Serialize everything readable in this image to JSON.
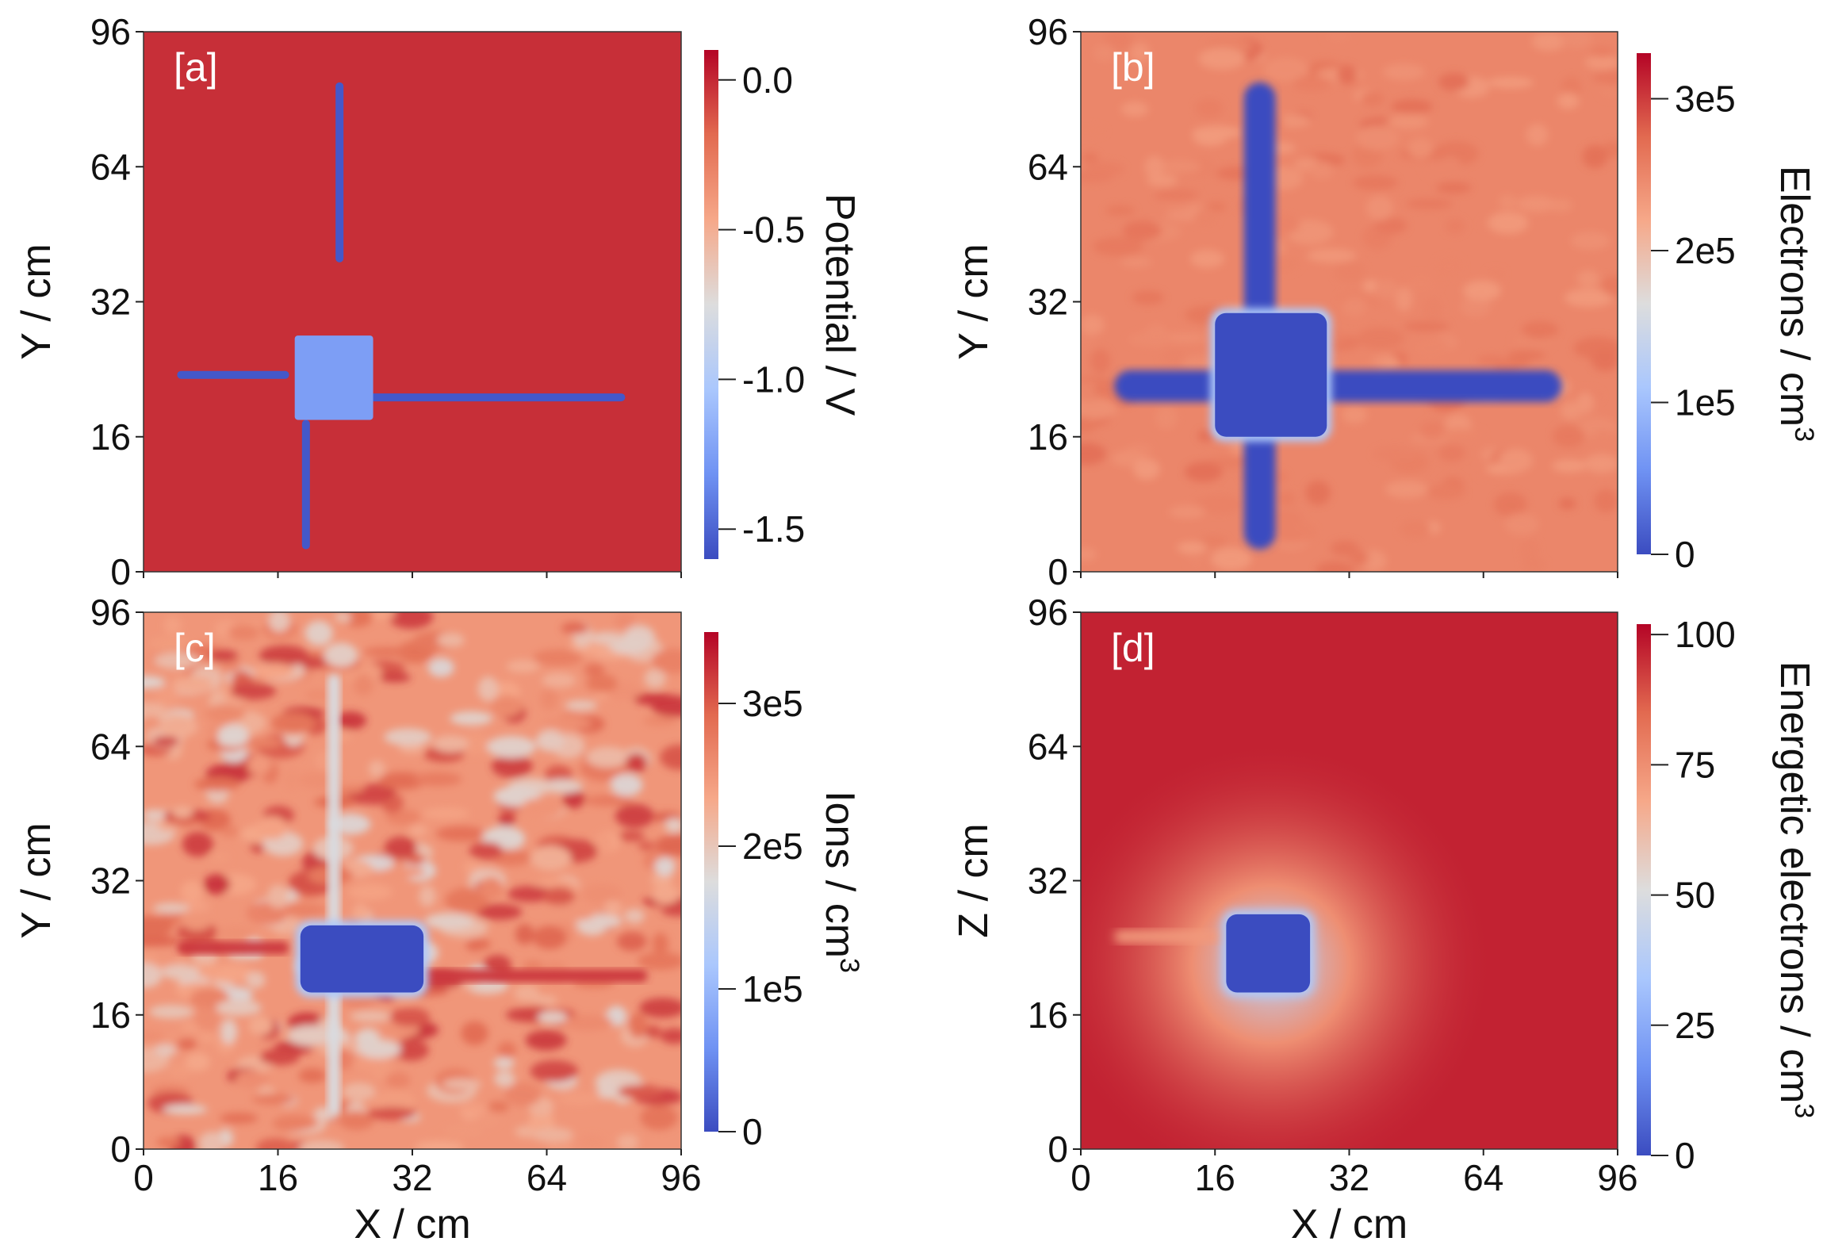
{
  "colors": {
    "cmap": [
      "#3b4cc0",
      "#6f92f3",
      "#aac7fd",
      "#dddddd",
      "#f6a889",
      "#e26a50",
      "#b40426"
    ]
  },
  "chart_data": [
    {
      "type": "heatmap",
      "tag": "[a]",
      "xlabel": "",
      "ylabel": "Y / cm",
      "x_ticks": [],
      "y_ticks": [
        "0",
        "16",
        "32",
        "64",
        "96"
      ],
      "colorbar": {
        "label": "Potential / V",
        "unit_sup": "",
        "range": [
          -1.6,
          0.1
        ],
        "ticks": [
          {
            "value": 0.0,
            "label": "0.0"
          },
          {
            "value": -0.5,
            "label": "-0.5"
          },
          {
            "value": -1.0,
            "label": "-1.0"
          },
          {
            "value": -1.5,
            "label": "-1.5"
          }
        ]
      },
      "background_value": -0.02,
      "features": [
        {
          "kind": "rod",
          "orientation": "horizontal",
          "from": 6,
          "to": 26,
          "at": 35,
          "value": -1.55
        },
        {
          "kind": "rod",
          "orientation": "horizontal",
          "from": 40,
          "to": 86,
          "at": 31,
          "value": -1.55
        },
        {
          "kind": "rod",
          "orientation": "vertical",
          "from": 55,
          "to": 87,
          "at": 35,
          "value": -1.55
        },
        {
          "kind": "rod",
          "orientation": "vertical",
          "from": 4,
          "to": 27,
          "at": 29,
          "value": -1.55
        },
        {
          "kind": "block",
          "x": [
            27,
            41
          ],
          "y": [
            27,
            42
          ],
          "value": -1.25
        }
      ]
    },
    {
      "type": "heatmap",
      "tag": "[b]",
      "xlabel": "",
      "ylabel": "Y / cm",
      "x_ticks": [],
      "y_ticks": [
        "0",
        "16",
        "32",
        "64",
        "96"
      ],
      "colorbar": {
        "label": "Electrons / cm",
        "unit_sup": "3",
        "range": [
          0,
          330000.0
        ],
        "ticks": [
          {
            "value": 300000,
            "label": "3e5"
          },
          {
            "value": 200000,
            "label": "2e5"
          },
          {
            "value": 100000,
            "label": "1e5"
          },
          {
            "value": 0,
            "label": "0"
          }
        ]
      },
      "background_value": 250000,
      "features": [
        {
          "kind": "rod",
          "orientation": "horizontal",
          "from": 6,
          "to": 86,
          "at": 33,
          "value": 0
        },
        {
          "kind": "rod",
          "orientation": "vertical",
          "from": 4,
          "to": 87,
          "at": 32,
          "value": 0
        },
        {
          "kind": "block",
          "x": [
            24,
            44
          ],
          "y": [
            24,
            46
          ],
          "value": 0
        }
      ]
    },
    {
      "type": "heatmap",
      "tag": "[c]",
      "xlabel": "X / cm",
      "ylabel": "Y / cm",
      "x_ticks": [
        "0",
        "16",
        "32",
        "64",
        "96"
      ],
      "y_ticks": [
        "0",
        "16",
        "32",
        "64",
        "96"
      ],
      "colorbar": {
        "label": "Ions / cm",
        "unit_sup": "3",
        "range": [
          0,
          350000.0
        ],
        "ticks": [
          {
            "value": 300000,
            "label": "3e5"
          },
          {
            "value": 200000,
            "label": "2e5"
          },
          {
            "value": 100000,
            "label": "1e5"
          },
          {
            "value": 0,
            "label": "0"
          }
        ]
      },
      "background_value": 250000,
      "features": [
        {
          "kind": "rod",
          "orientation": "horizontal",
          "from": 6,
          "to": 26,
          "at": 36,
          "value": 320000
        },
        {
          "kind": "rod",
          "orientation": "horizontal",
          "from": 48,
          "to": 90,
          "at": 31,
          "value": 320000
        },
        {
          "kind": "rod",
          "orientation": "vertical",
          "from": 6,
          "to": 85,
          "at": 34,
          "value": 170000
        },
        {
          "kind": "block",
          "x": [
            28,
            50
          ],
          "y": [
            28,
            40
          ],
          "value": 0
        }
      ]
    },
    {
      "type": "heatmap",
      "tag": "[d]",
      "xlabel": "X / cm",
      "ylabel": "Z / cm",
      "x_ticks": [
        "0",
        "16",
        "32",
        "64",
        "96"
      ],
      "y_ticks": [
        "0",
        "16",
        "32",
        "64",
        "96"
      ],
      "colorbar": {
        "label": "Energetic electrons / cm",
        "unit_sup": "3",
        "range": [
          0,
          102
        ],
        "ticks": [
          {
            "value": 100,
            "label": "100"
          },
          {
            "value": 75,
            "label": "75"
          },
          {
            "value": 50,
            "label": "50"
          },
          {
            "value": 25,
            "label": "25"
          },
          {
            "value": 0,
            "label": "0"
          }
        ]
      },
      "background_value": 97,
      "features": [
        {
          "kind": "halo",
          "cx": 34,
          "cy": 33,
          "value": 75
        },
        {
          "kind": "rod",
          "orientation": "horizontal",
          "from": 6,
          "to": 26,
          "at": 38,
          "value": 72
        },
        {
          "kind": "block",
          "x": [
            26,
            41
          ],
          "y": [
            28,
            42
          ],
          "value": 0
        }
      ]
    }
  ]
}
